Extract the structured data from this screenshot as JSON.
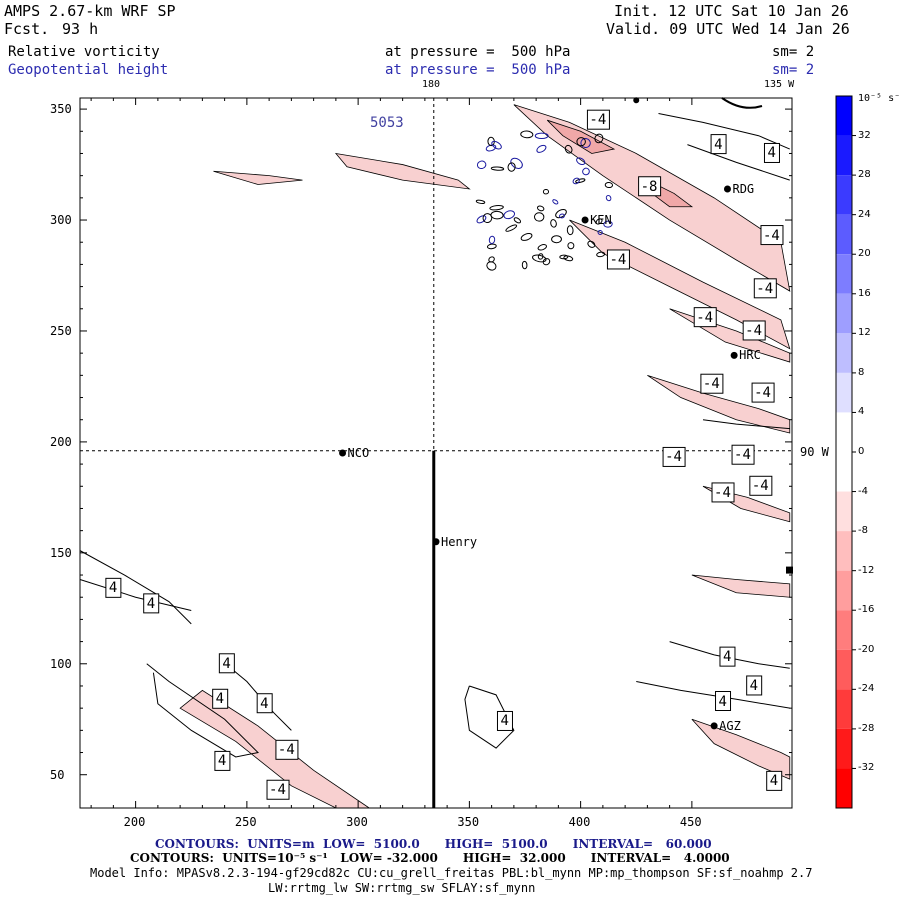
{
  "header": {
    "model": "AMPS 2.67-km WRF SP",
    "fcst_label": "Fcst.",
    "fcst_value": "93 h",
    "init": "Init. 12 UTC Sat 10 Jan 26",
    "valid": "Valid. 09 UTC Wed 14 Jan 26",
    "field1": "Relative vorticity",
    "field1_pressure": "at pressure =  500 hPa",
    "field1_sm": "sm= 2",
    "field2": "Geopotential height",
    "field2_pressure": "at pressure =  500 hPa",
    "field2_sm": "sm= 2"
  },
  "map_labels": {
    "lon_180": "180",
    "lon_135w": "135 W",
    "lon_90w": "90 W",
    "height_label": "5053"
  },
  "stations": [
    {
      "name": "RDG",
      "x": 466,
      "y": 314
    },
    {
      "name": "KEN",
      "x": 402,
      "y": 300
    },
    {
      "name": "HRC",
      "x": 469,
      "y": 239
    },
    {
      "name": "NCO",
      "x": 293,
      "y": 195
    },
    {
      "name": "Henry",
      "x": 335,
      "y": 155
    },
    {
      "name": "AGZ",
      "x": 460,
      "y": 72
    }
  ],
  "contour_labels": [
    {
      "text": "-4",
      "x": 408,
      "y": 345
    },
    {
      "text": "4",
      "x": 462,
      "y": 334
    },
    {
      "text": "4",
      "x": 486,
      "y": 330
    },
    {
      "text": "-8",
      "x": 431,
      "y": 315
    },
    {
      "text": "-4",
      "x": 486,
      "y": 293
    },
    {
      "text": "-4",
      "x": 417,
      "y": 282
    },
    {
      "text": "-4",
      "x": 483,
      "y": 269
    },
    {
      "text": "-4",
      "x": 456,
      "y": 256
    },
    {
      "text": "-4",
      "x": 478,
      "y": 250
    },
    {
      "text": "-4",
      "x": 459,
      "y": 226
    },
    {
      "text": "-4",
      "x": 482,
      "y": 222
    },
    {
      "text": "-4",
      "x": 442,
      "y": 193
    },
    {
      "text": "-4",
      "x": 473,
      "y": 194
    },
    {
      "text": "-4",
      "x": 481,
      "y": 180
    },
    {
      "text": "-4",
      "x": 464,
      "y": 177
    },
    {
      "text": "4",
      "x": 190,
      "y": 134
    },
    {
      "text": "4",
      "x": 207,
      "y": 127
    },
    {
      "text": "4",
      "x": 241,
      "y": 100
    },
    {
      "text": "4",
      "x": 258,
      "y": 82
    },
    {
      "text": "4",
      "x": 238,
      "y": 84
    },
    {
      "text": "-4",
      "x": 268,
      "y": 61
    },
    {
      "text": "4",
      "x": 239,
      "y": 56
    },
    {
      "text": "-4",
      "x": 264,
      "y": 43
    },
    {
      "text": "4",
      "x": 366,
      "y": 74
    },
    {
      "text": "4",
      "x": 466,
      "y": 103
    },
    {
      "text": "4",
      "x": 478,
      "y": 90
    },
    {
      "text": "4",
      "x": 464,
      "y": 83
    },
    {
      "text": "4",
      "x": 487,
      "y": 47
    }
  ],
  "colorbar": {
    "unit": "10⁻⁵ s⁻¹",
    "levels": [
      32,
      28,
      24,
      20,
      16,
      12,
      8,
      4,
      0,
      -4,
      -8,
      -12,
      -16,
      -20,
      -24,
      -28,
      -32
    ],
    "colors": [
      "#0000ff",
      "#1a1aff",
      "#3b3bff",
      "#5c5cff",
      "#7d7dff",
      "#9e9eff",
      "#bebeff",
      "#dfdfff",
      "#ffffff",
      "#ffffff",
      "#ffdfdf",
      "#ffbebe",
      "#ff9e9e",
      "#ff7d7d",
      "#ff5c5c",
      "#ff3b3b",
      "#ff1a1a",
      "#ff0000"
    ]
  },
  "chart_data": {
    "type": "contour",
    "title": "Relative vorticity / Geopotential height at 500 hPa",
    "xlim": [
      175,
      495
    ],
    "ylim": [
      35,
      355
    ],
    "xticks": [
      200,
      250,
      300,
      350,
      400,
      450
    ],
    "yticks": [
      50,
      100,
      150,
      200,
      250,
      300,
      350
    ],
    "x_tick_labels": [
      "200",
      "250",
      "300",
      "350",
      "400",
      "450"
    ],
    "y_tick_labels": [
      "50",
      "100",
      "150",
      "200",
      "250",
      "300",
      "350"
    ],
    "vertical_line_x": 334,
    "horizontal_line_y": 196,
    "cross_section_x": 334,
    "cross_section_y": [
      35,
      196
    ]
  },
  "footer": {
    "line1": "CONTOURS:  UNITS=m  LOW=  5100.0      HIGH=  5100.0      INTERVAL=   60.000",
    "line2": "CONTOURS:  UNITS=10⁻⁵ s⁻¹   LOW= -32.000      HIGH=  32.000      INTERVAL=   4.0000",
    "line3": "Model Info: MPASv8.2.3-194-gf29cd82c CU:cu_grell_freitas PBL:bl_mynn MP:mp_thompson SF:sf_noahmp 2.7",
    "line4": "LW:rrtmg_lw SW:rrtmg_sw SFLAY:sf_mynn"
  }
}
